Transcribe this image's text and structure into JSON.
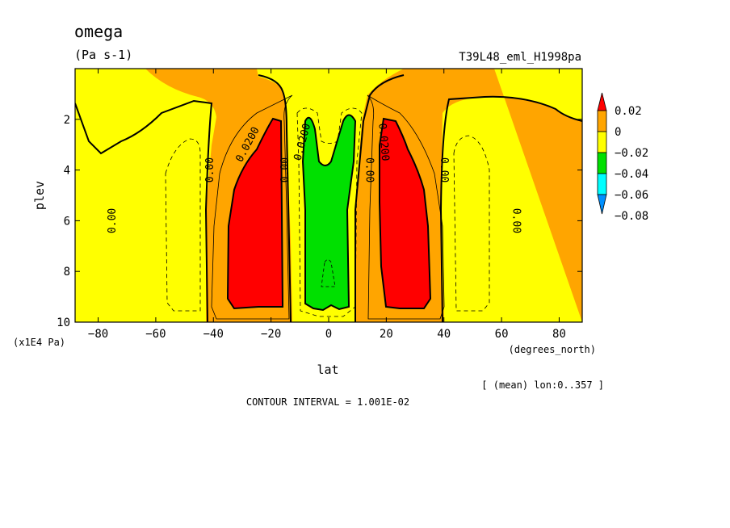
{
  "chart_data": {
    "type": "contour",
    "title": "omega",
    "units": "(Pa s-1)",
    "run_id": "T39L48_eml_H1998pa",
    "xlabel": "lat",
    "x_units": "(degrees_north)",
    "ylabel": "plev",
    "y_units": "(x1E4 Pa)",
    "xlim": [
      -88,
      88
    ],
    "ylim": [
      10,
      0
    ],
    "x_ticks": [
      -80,
      -60,
      -40,
      -20,
      0,
      20,
      40,
      60,
      80
    ],
    "y_ticks": [
      2,
      4,
      6,
      8,
      10
    ],
    "mean_note": "[ (mean) lon:0..357 ]",
    "contour_interval": "CONTOUR INTERVAL = 1.001E-02",
    "colorbar": {
      "labels": [
        "0.02",
        "0",
        "−0.02",
        "−0.04",
        "−0.06",
        "−0.08"
      ],
      "colors": [
        "#ff0000",
        "#ffa500",
        "#ffff00",
        "#00e000",
        "#00ffff",
        "#0090ff"
      ]
    },
    "contour_labels": [
      {
        "text": "0.00",
        "lat": -75,
        "plev": 6.0,
        "angle": -90
      },
      {
        "text": "0.00",
        "lat": -41,
        "plev": 4.0,
        "angle": -90
      },
      {
        "text": "0.0200",
        "lat": -28,
        "plev": 3.0,
        "angle": -62
      },
      {
        "text": "0.00",
        "lat": -15,
        "plev": 4.0,
        "angle": -90
      },
      {
        "text": "0.0200",
        "lat": -9,
        "plev": 2.9,
        "angle": -75
      },
      {
        "text": "0.00",
        "lat": 14,
        "plev": 4.0,
        "angle": 90
      },
      {
        "text": "0.0200",
        "lat": 19,
        "plev": 2.9,
        "angle": 85
      },
      {
        "text": "0.00",
        "lat": 40,
        "plev": 4.0,
        "angle": 90
      },
      {
        "text": "0.00",
        "lat": 65,
        "plev": 6.0,
        "angle": 90
      }
    ]
  }
}
